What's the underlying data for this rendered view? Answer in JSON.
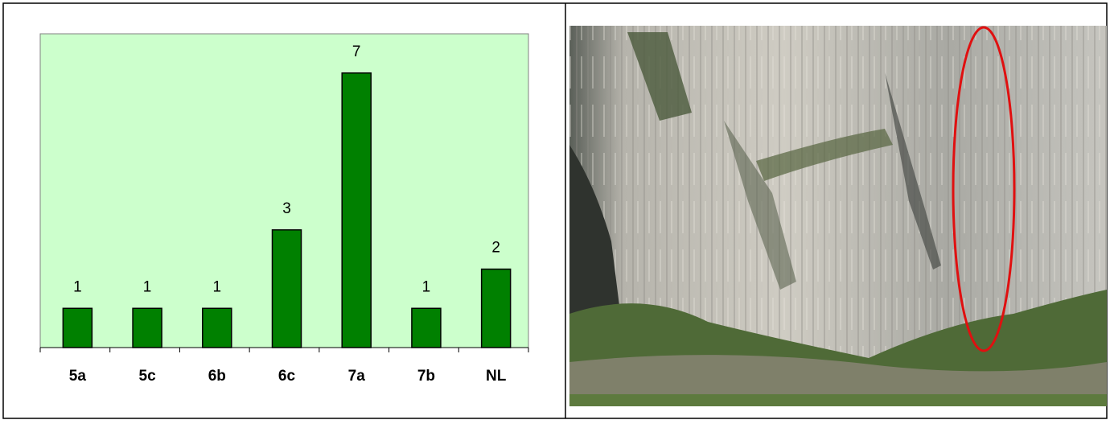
{
  "chart_data": {
    "type": "bar",
    "categories": [
      "5a",
      "5c",
      "6b",
      "6c",
      "7a",
      "7b",
      "NL"
    ],
    "values": [
      1,
      1,
      1,
      3,
      7,
      1,
      2
    ],
    "color": "#008000",
    "plot_background": "#ccffcc",
    "ylim": [
      0,
      8
    ],
    "data_labels": true
  }
}
